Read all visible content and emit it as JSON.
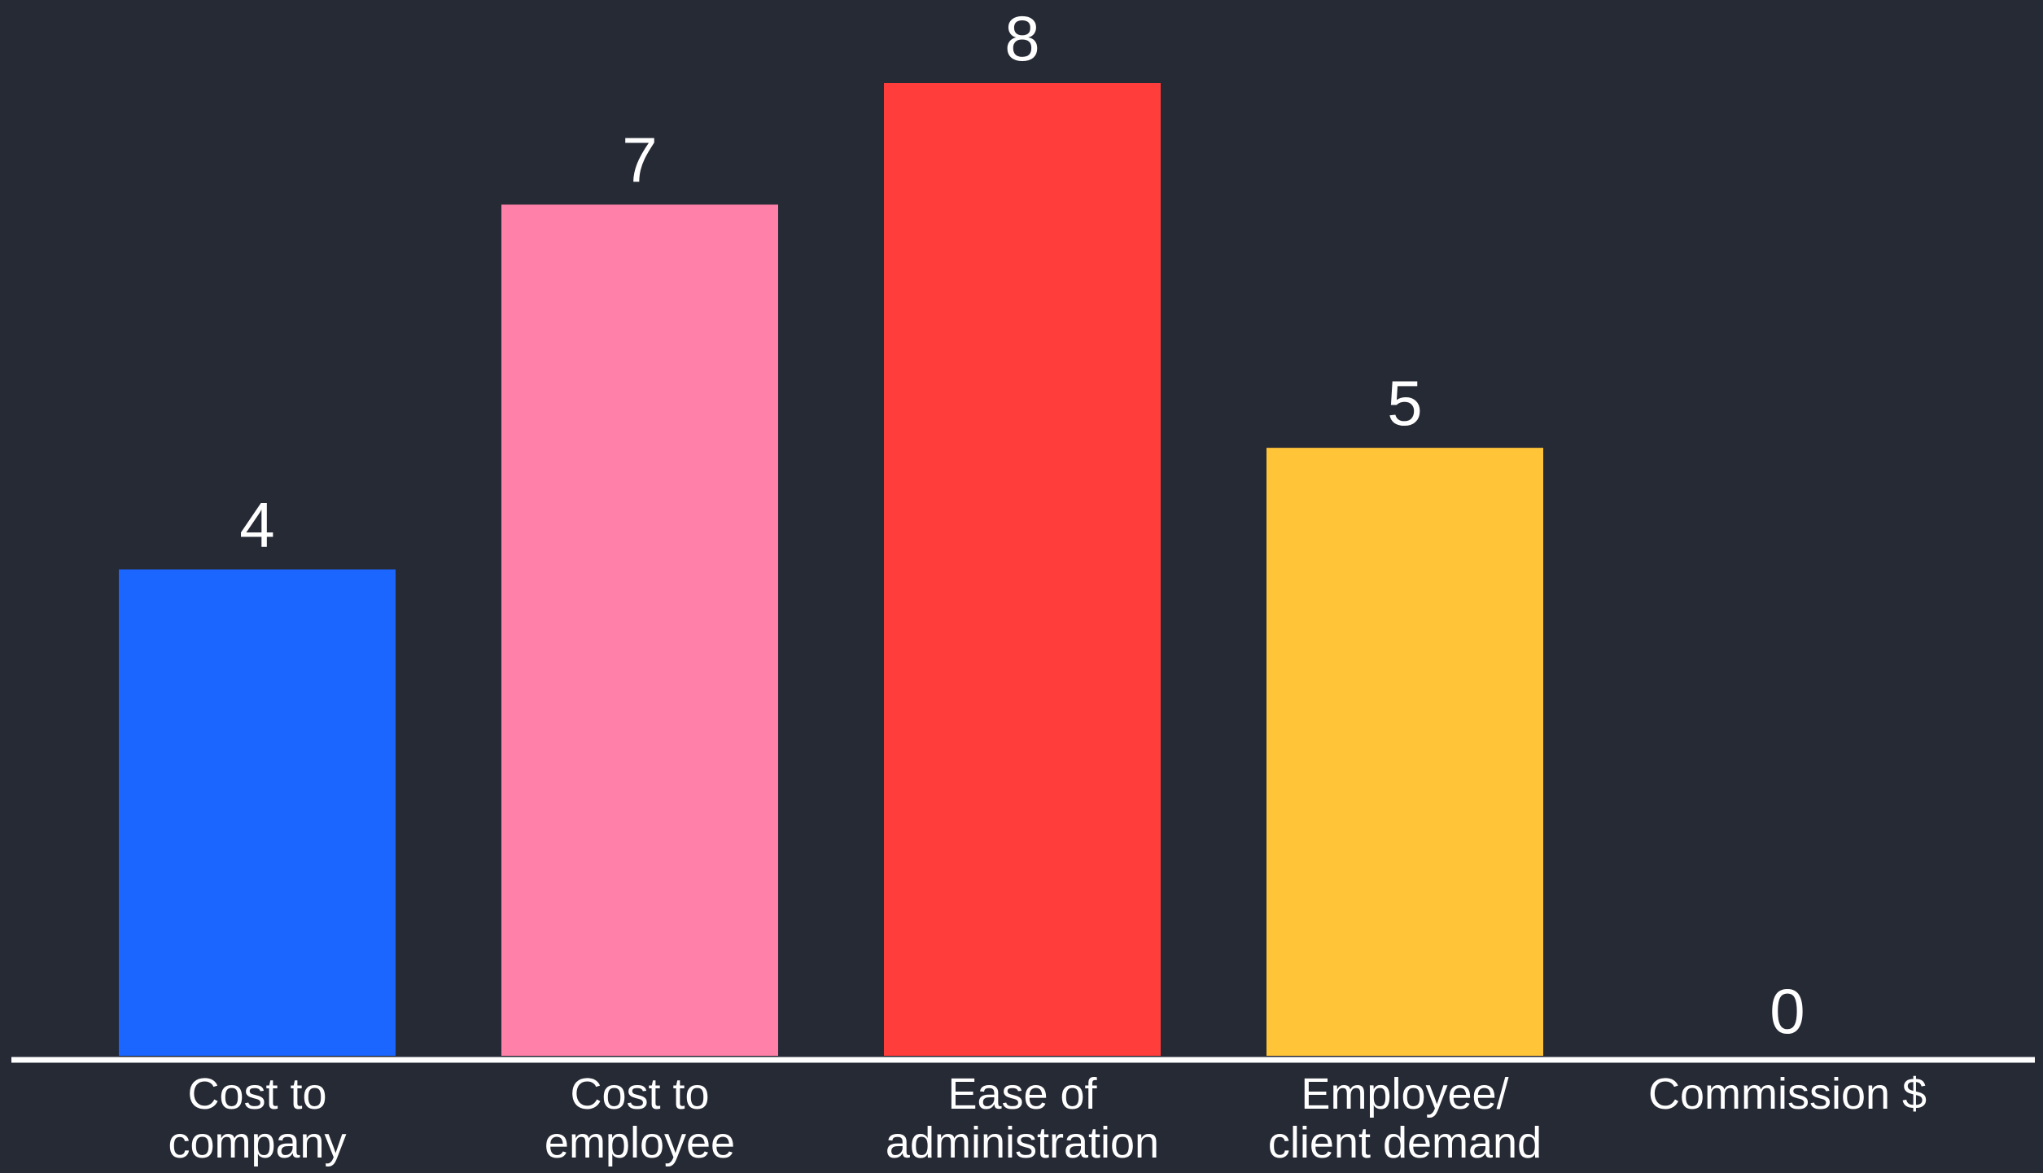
{
  "chart_data": {
    "type": "bar",
    "categories": [
      [
        "Cost to",
        "company"
      ],
      [
        "Cost to",
        "employee"
      ],
      [
        "Ease of",
        "administration"
      ],
      [
        "Employee/",
        "client demand"
      ],
      [
        "Commission $"
      ]
    ],
    "values": [
      4,
      7,
      8,
      5,
      0
    ],
    "value_labels": [
      "4",
      "7",
      "8",
      "5",
      "0"
    ],
    "colors": [
      "#1a66ff",
      "#ff80a8",
      "#ff3d3a",
      "#ffc438",
      "#ffffff"
    ],
    "title": "",
    "xlabel": "",
    "ylabel": "",
    "ylim": [
      0,
      8
    ],
    "grid": false,
    "legend": "none",
    "background": "#262a35",
    "axis_color": "#ffffff"
  }
}
